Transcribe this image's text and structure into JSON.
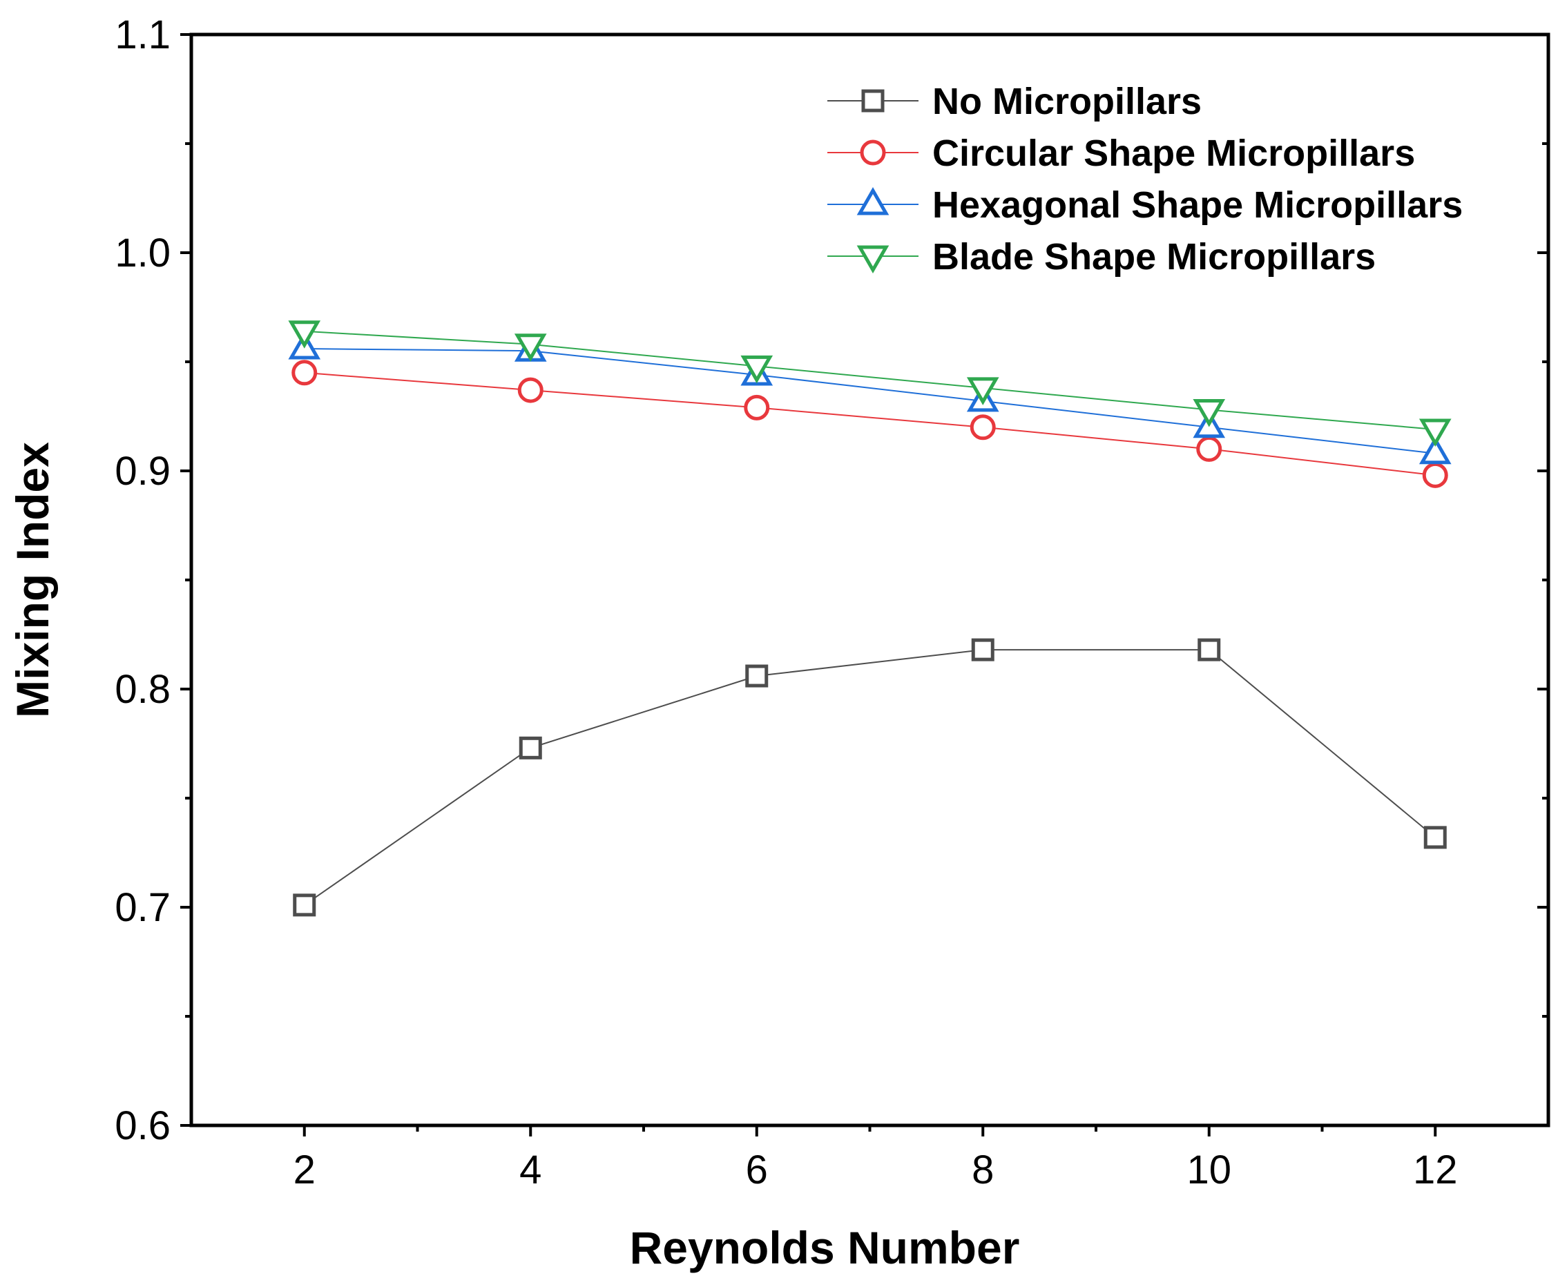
{
  "chart_data": {
    "type": "line",
    "title": "",
    "xlabel": "Reynolds Number",
    "ylabel": "Mixing Index",
    "x": [
      2,
      4,
      6,
      8,
      10,
      12
    ],
    "xlim": [
      1,
      13
    ],
    "ylim": [
      0.6,
      1.1
    ],
    "xticks": [
      2,
      4,
      6,
      8,
      10,
      12
    ],
    "xtick_labels": [
      "2",
      "4",
      "6",
      "8",
      "10",
      "12"
    ],
    "yticks": [
      0.6,
      0.7,
      0.8,
      0.9,
      1.0,
      1.1
    ],
    "ytick_labels": [
      "0.6",
      "0.7",
      "0.8",
      "0.9",
      "1.0",
      "1.1"
    ],
    "grid": false,
    "legend_position": "top-right",
    "series": [
      {
        "name": "No Micropillars",
        "marker": "square",
        "color": "#4d4d4d",
        "values": [
          0.701,
          0.773,
          0.806,
          0.818,
          0.818,
          0.732
        ]
      },
      {
        "name": "Circular Shape Micropillars",
        "marker": "circle",
        "color": "#e8383d",
        "values": [
          0.945,
          0.937,
          0.929,
          0.92,
          0.91,
          0.898
        ]
      },
      {
        "name": "Hexagonal Shape Micropillars",
        "marker": "triangle-up",
        "color": "#1f6fd8",
        "values": [
          0.956,
          0.955,
          0.944,
          0.932,
          0.92,
          0.908
        ]
      },
      {
        "name": "Blade Shape Micropillars",
        "marker": "triangle-down",
        "color": "#2fa84f",
        "values": [
          0.964,
          0.958,
          0.948,
          0.938,
          0.928,
          0.919
        ]
      }
    ]
  }
}
